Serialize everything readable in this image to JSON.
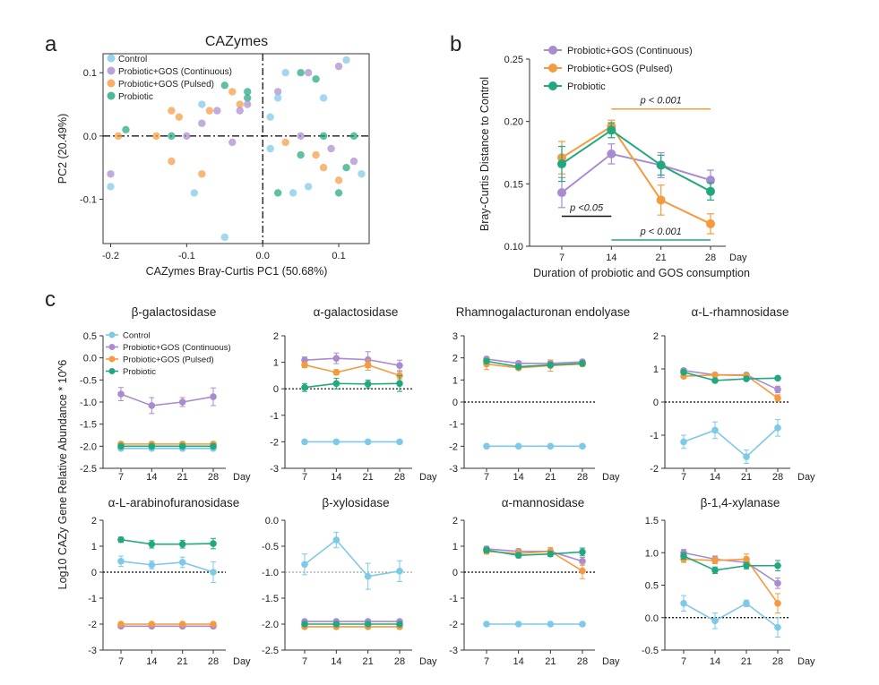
{
  "colors": {
    "control": "#7ec8e8",
    "continuous": "#a98ccf",
    "pulsed": "#f59b3f",
    "probiotic": "#22a77f"
  },
  "groups": [
    {
      "key": "control",
      "name": "Control"
    },
    {
      "key": "continuous",
      "name": "Probiotic+GOS (Continuous)"
    },
    {
      "key": "pulsed",
      "name": "Probiotic+GOS (Pulsed)"
    },
    {
      "key": "probiotic",
      "name": "Probiotic"
    }
  ],
  "panel_labels": {
    "a": "a",
    "b": "b",
    "c": "c"
  },
  "chart_data": [
    {
      "id": "pca",
      "type": "scatter",
      "title": "CAZymes",
      "xlabel": "CAZymes Bray-Curtis PC1 (50.68%)",
      "ylabel": "PC2 (20.49%)",
      "xlim": [
        -0.21,
        0.14
      ],
      "ylim": [
        -0.17,
        0.13
      ],
      "xticks": [
        -0.2,
        -0.1,
        0.0,
        0.1
      ],
      "xtick_labels": [
        "-0.2",
        "-0.1",
        "0.0",
        "0.1"
      ],
      "yticks": [
        0.1,
        0.0,
        -0.1
      ],
      "ytick_labels": [
        "0.1",
        "0.0",
        "-0.1"
      ],
      "legend": [
        "Control",
        "Probiotic+GOS (Continuous)",
        "Probiotic+GOS (Pulsed)",
        "Probiotic"
      ],
      "series": [
        {
          "key": "control",
          "points": [
            [
              -0.2,
              -0.08
            ],
            [
              -0.09,
              -0.09
            ],
            [
              -0.05,
              -0.16
            ],
            [
              -0.08,
              0.05
            ],
            [
              0.01,
              0.03
            ],
            [
              0.04,
              -0.09
            ],
            [
              0.11,
              0.12
            ],
            [
              0.13,
              -0.06
            ],
            [
              0.02,
              0.06
            ],
            [
              0.01,
              -0.02
            ],
            [
              0.08,
              0.06
            ],
            [
              0.06,
              -0.08
            ],
            [
              0.03,
              0.1
            ]
          ]
        },
        {
          "key": "continuous",
          "points": [
            [
              -0.2,
              -0.06
            ],
            [
              -0.1,
              0.0
            ],
            [
              -0.06,
              0.04
            ],
            [
              -0.03,
              0.04
            ],
            [
              -0.02,
              0.05
            ],
            [
              0.02,
              0.07
            ],
            [
              0.06,
              0.1
            ],
            [
              0.1,
              0.11
            ],
            [
              -0.04,
              -0.01
            ],
            [
              0.05,
              0.0
            ],
            [
              0.09,
              -0.02
            ],
            [
              0.12,
              -0.04
            ],
            [
              -0.08,
              0.02
            ]
          ]
        },
        {
          "key": "pulsed",
          "points": [
            [
              -0.19,
              0.0
            ],
            [
              -0.14,
              0.0
            ],
            [
              -0.12,
              -0.04
            ],
            [
              -0.08,
              -0.06
            ],
            [
              -0.11,
              0.03
            ],
            [
              -0.12,
              0.04
            ],
            [
              -0.07,
              0.04
            ],
            [
              -0.04,
              0.07
            ],
            [
              0.03,
              -0.01
            ],
            [
              0.08,
              -0.05
            ],
            [
              0.1,
              -0.07
            ],
            [
              -0.03,
              0.05
            ],
            [
              0.07,
              -0.03
            ]
          ]
        },
        {
          "key": "probiotic",
          "points": [
            [
              -0.18,
              0.01
            ],
            [
              -0.12,
              0.0
            ],
            [
              -0.05,
              0.08
            ],
            [
              -0.02,
              0.07
            ],
            [
              0.05,
              0.1
            ],
            [
              0.07,
              0.09
            ],
            [
              0.02,
              -0.09
            ],
            [
              0.08,
              0.0
            ],
            [
              0.12,
              0.0
            ],
            [
              0.11,
              -0.05
            ],
            [
              0.05,
              -0.03
            ],
            [
              -0.02,
              0.06
            ],
            [
              0.1,
              -0.09
            ]
          ]
        }
      ]
    },
    {
      "id": "bray",
      "type": "line",
      "xlabel": "Duration of probiotic and GOS consumption",
      "ylabel": "Bray-Curtis Distance to Control",
      "x": [
        7,
        14,
        21,
        28
      ],
      "xtick_labels": [
        "7",
        "14",
        "21",
        "28"
      ],
      "x_unit": "Day",
      "ylim": [
        0.1,
        0.25
      ],
      "yticks": [
        0.1,
        0.15,
        0.2,
        0.25
      ],
      "ytick_labels": [
        "0.10",
        "0.15",
        "0.20",
        "0.25"
      ],
      "legend": [
        "Probiotic+GOS (Continuous)",
        "Probiotic+GOS (Pulsed)",
        "Probiotic"
      ],
      "series": [
        {
          "key": "continuous",
          "values": [
            0.143,
            0.174,
            0.165,
            0.153
          ],
          "err": [
            0.012,
            0.008,
            0.01,
            0.008
          ]
        },
        {
          "key": "pulsed",
          "values": [
            0.171,
            0.196,
            0.137,
            0.118
          ],
          "err": [
            0.013,
            0.005,
            0.012,
            0.008
          ]
        },
        {
          "key": "probiotic",
          "values": [
            0.166,
            0.193,
            0.165,
            0.144
          ],
          "err": [
            0.014,
            0.006,
            0.008,
            0.007
          ]
        }
      ],
      "annotations": [
        {
          "text": "p < 0.001",
          "from": 14,
          "to": 28,
          "y": 0.21,
          "color": "pulsed"
        },
        {
          "text": "p <0.05",
          "from": 7,
          "to": 14,
          "y": 0.124,
          "color": "black"
        },
        {
          "text": "p < 0.001",
          "from": 14,
          "to": 28,
          "y": 0.105,
          "color": "probiotic"
        }
      ]
    },
    {
      "id": "c1",
      "type": "line",
      "title": "β-galactosidase",
      "x": [
        7,
        14,
        21,
        28
      ],
      "ylim": [
        -2.5,
        0.5
      ],
      "yticks": [
        0.5,
        0.0,
        -0.5,
        -1.0,
        -1.5,
        -2.0,
        -2.5
      ],
      "ytick_labels": [
        "0.5",
        "0.0",
        "-0.5",
        "-1.0",
        "-1.5",
        "-2.0",
        "-2.5"
      ],
      "zero_line": false,
      "series": [
        {
          "key": "control",
          "values": [
            -2.05,
            -2.05,
            -2.05,
            -2.05
          ],
          "err": [
            0.02,
            0.02,
            0.02,
            0.02
          ]
        },
        {
          "key": "continuous",
          "values": [
            -0.82,
            -1.08,
            -1.0,
            -0.88
          ],
          "err": [
            0.15,
            0.18,
            0.1,
            0.2
          ]
        },
        {
          "key": "pulsed",
          "values": [
            -1.95,
            -1.95,
            -1.95,
            -1.95
          ],
          "err": [
            0.02,
            0.02,
            0.02,
            0.02
          ]
        },
        {
          "key": "probiotic",
          "values": [
            -2.0,
            -2.0,
            -2.0,
            -2.0
          ],
          "err": [
            0.02,
            0.02,
            0.02,
            0.02
          ]
        }
      ]
    },
    {
      "id": "c2",
      "type": "line",
      "title": "α-galactosidase",
      "x": [
        7,
        14,
        21,
        28
      ],
      "ylim": [
        -3,
        2
      ],
      "yticks": [
        2,
        1,
        0,
        -1,
        -2,
        -3
      ],
      "ytick_labels": [
        "2",
        "1",
        "0",
        "-1",
        "-2",
        "-3"
      ],
      "zero_line": true,
      "series": [
        {
          "key": "control",
          "values": [
            -2.0,
            -2.0,
            -2.0,
            -2.0
          ],
          "err": [
            0.03,
            0.03,
            0.03,
            0.03
          ]
        },
        {
          "key": "continuous",
          "values": [
            1.08,
            1.15,
            1.1,
            0.88
          ],
          "err": [
            0.12,
            0.2,
            0.3,
            0.2
          ]
        },
        {
          "key": "pulsed",
          "values": [
            0.9,
            0.62,
            0.9,
            0.5
          ],
          "err": [
            0.1,
            0.1,
            0.2,
            0.15
          ]
        },
        {
          "key": "probiotic",
          "values": [
            0.05,
            0.2,
            0.18,
            0.2
          ],
          "err": [
            0.15,
            0.2,
            0.15,
            0.3
          ]
        }
      ]
    },
    {
      "id": "c3",
      "type": "line",
      "title": "Rhamnogalacturonan endolyase",
      "x": [
        7,
        14,
        21,
        28
      ],
      "ylim": [
        -3,
        3
      ],
      "yticks": [
        3,
        2,
        1,
        0,
        -1,
        -2,
        -3
      ],
      "ytick_labels": [
        "3",
        "2",
        "1",
        "0",
        "-1",
        "-2",
        "-3"
      ],
      "zero_line": true,
      "series": [
        {
          "key": "control",
          "values": [
            -2.0,
            -2.0,
            -2.0,
            -2.0
          ],
          "err": [
            0.03,
            0.03,
            0.03,
            0.03
          ]
        },
        {
          "key": "continuous",
          "values": [
            1.95,
            1.75,
            1.75,
            1.82
          ],
          "err": [
            0.1,
            0.1,
            0.15,
            0.1
          ]
        },
        {
          "key": "pulsed",
          "values": [
            1.72,
            1.55,
            1.65,
            1.72
          ],
          "err": [
            0.25,
            0.1,
            0.25,
            0.1
          ]
        },
        {
          "key": "probiotic",
          "values": [
            1.85,
            1.6,
            1.68,
            1.75
          ],
          "err": [
            0.1,
            0.1,
            0.1,
            0.1
          ]
        }
      ]
    },
    {
      "id": "c4",
      "type": "line",
      "title": "α-L-rhamnosidase",
      "x": [
        7,
        14,
        21,
        28
      ],
      "ylim": [
        -2,
        2
      ],
      "yticks": [
        2,
        1,
        0,
        -1,
        -2
      ],
      "ytick_labels": [
        "2",
        "1",
        "0",
        "-1",
        "-2"
      ],
      "zero_line": true,
      "series": [
        {
          "key": "control",
          "values": [
            -1.2,
            -0.85,
            -1.65,
            -0.78
          ],
          "err": [
            0.2,
            0.25,
            0.2,
            0.25
          ]
        },
        {
          "key": "continuous",
          "values": [
            0.95,
            0.82,
            0.82,
            0.38
          ],
          "err": [
            0.05,
            0.05,
            0.05,
            0.1
          ]
        },
        {
          "key": "pulsed",
          "values": [
            0.78,
            0.82,
            0.8,
            0.12
          ],
          "err": [
            0.05,
            0.05,
            0.05,
            0.1
          ]
        },
        {
          "key": "probiotic",
          "values": [
            0.9,
            0.65,
            0.7,
            0.72
          ],
          "err": [
            0.05,
            0.05,
            0.05,
            0.05
          ]
        }
      ]
    },
    {
      "id": "c5",
      "type": "line",
      "title": "α-L-arabinofuranosidase",
      "x": [
        7,
        14,
        21,
        28
      ],
      "ylim": [
        -3,
        2
      ],
      "yticks": [
        2,
        1,
        0,
        -1,
        -2,
        -3
      ],
      "ytick_labels": [
        "2",
        "1",
        "0",
        "-1",
        "-2",
        "-3"
      ],
      "zero_line": true,
      "series": [
        {
          "key": "control",
          "values": [
            0.42,
            0.28,
            0.38,
            0.0
          ],
          "err": [
            0.2,
            0.15,
            0.2,
            0.4
          ]
        },
        {
          "key": "continuous",
          "values": [
            -2.08,
            -2.08,
            -2.08,
            -2.08
          ],
          "err": [
            0.02,
            0.02,
            0.02,
            0.02
          ]
        },
        {
          "key": "pulsed",
          "values": [
            -2.0,
            -2.0,
            -2.0,
            -2.0
          ],
          "err": [
            0.02,
            0.02,
            0.02,
            0.02
          ]
        },
        {
          "key": "probiotic",
          "values": [
            1.25,
            1.08,
            1.08,
            1.1
          ],
          "err": [
            0.1,
            0.15,
            0.15,
            0.2
          ]
        }
      ]
    },
    {
      "id": "c6",
      "type": "line",
      "title": "β-xylosidase",
      "x": [
        7,
        14,
        21,
        28
      ],
      "ylim": [
        -2.5,
        0.0
      ],
      "yticks": [
        0.0,
        -0.5,
        -1.0,
        -1.5,
        -2.0,
        -2.5
      ],
      "ytick_labels": [
        "0.0",
        "-0.5",
        "-1.0",
        "-1.5",
        "-2.0",
        "-2.5"
      ],
      "zero_line": false,
      "ref_line": -1.0,
      "series": [
        {
          "key": "control",
          "values": [
            -0.85,
            -0.38,
            -1.08,
            -0.98
          ],
          "err": [
            0.2,
            0.15,
            0.25,
            0.2
          ]
        },
        {
          "key": "continuous",
          "values": [
            -1.95,
            -1.95,
            -1.95,
            -1.95
          ],
          "err": [
            0.02,
            0.02,
            0.02,
            0.02
          ]
        },
        {
          "key": "pulsed",
          "values": [
            -2.05,
            -2.05,
            -2.05,
            -2.05
          ],
          "err": [
            0.02,
            0.02,
            0.02,
            0.02
          ]
        },
        {
          "key": "probiotic",
          "values": [
            -2.0,
            -2.0,
            -2.0,
            -2.0
          ],
          "err": [
            0.02,
            0.02,
            0.02,
            0.02
          ]
        }
      ]
    },
    {
      "id": "c7",
      "type": "line",
      "title": "α-mannosidase",
      "x": [
        7,
        14,
        21,
        28
      ],
      "ylim": [
        -3,
        2
      ],
      "yticks": [
        2,
        1,
        0,
        -1,
        -2,
        -3
      ],
      "ytick_labels": [
        "2",
        "1",
        "0",
        "-1",
        "-2",
        "-3"
      ],
      "zero_line": true,
      "series": [
        {
          "key": "control",
          "values": [
            -2.0,
            -2.0,
            -2.0,
            -2.0
          ],
          "err": [
            0.03,
            0.03,
            0.03,
            0.03
          ]
        },
        {
          "key": "continuous",
          "values": [
            0.9,
            0.8,
            0.8,
            0.42
          ],
          "err": [
            0.1,
            0.1,
            0.1,
            0.15
          ]
        },
        {
          "key": "pulsed",
          "values": [
            0.8,
            0.72,
            0.8,
            0.05
          ],
          "err": [
            0.1,
            0.15,
            0.15,
            0.3
          ]
        },
        {
          "key": "probiotic",
          "values": [
            0.85,
            0.65,
            0.7,
            0.78
          ],
          "err": [
            0.1,
            0.1,
            0.1,
            0.15
          ]
        }
      ]
    },
    {
      "id": "c8",
      "type": "line",
      "title": "β-1,4-xylanase",
      "x": [
        7,
        14,
        21,
        28
      ],
      "ylim": [
        -0.5,
        1.5
      ],
      "yticks": [
        1.5,
        1.0,
        0.5,
        0.0,
        -0.5
      ],
      "ytick_labels": [
        "1.5",
        "1.0",
        "0.5",
        "0.0",
        "-0.5"
      ],
      "zero_line": true,
      "series": [
        {
          "key": "control",
          "values": [
            0.22,
            -0.05,
            0.22,
            -0.15
          ],
          "err": [
            0.12,
            0.12,
            0.05,
            0.15
          ]
        },
        {
          "key": "continuous",
          "values": [
            1.0,
            0.9,
            0.85,
            0.53
          ],
          "err": [
            0.05,
            0.05,
            0.05,
            0.08
          ]
        },
        {
          "key": "pulsed",
          "values": [
            0.9,
            0.88,
            0.9,
            0.22
          ],
          "err": [
            0.05,
            0.05,
            0.08,
            0.15
          ]
        },
        {
          "key": "probiotic",
          "values": [
            0.95,
            0.73,
            0.8,
            0.8
          ],
          "err": [
            0.05,
            0.05,
            0.05,
            0.08
          ]
        }
      ]
    }
  ],
  "panel_c": {
    "ylabel": "Log10  CAZy Gene Relative Abundance * 10^6",
    "xtick_labels": [
      "7",
      "14",
      "21",
      "28"
    ],
    "x_unit": "Day",
    "legend": [
      "Control",
      "Probiotic+GOS (Continuous)",
      "Probiotic+GOS (Pulsed)",
      "Probiotic"
    ]
  }
}
